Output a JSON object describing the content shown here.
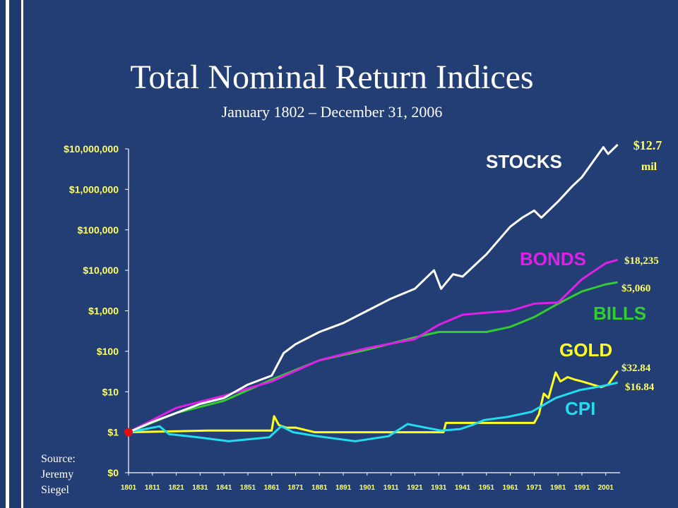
{
  "title": "Total Nominal Return Indices",
  "subtitle": "January 1802 – December 31, 2006",
  "source_lines": [
    "Source:",
    "Jeremy",
    "Siegel"
  ],
  "colors": {
    "background": "#233e74",
    "axis_text": "#ffff66",
    "stocks": "#ffffff",
    "bonds": "#e020e8",
    "bills": "#33cc33",
    "gold": "#ffff22",
    "cpi": "#22ddee",
    "marker": "#e01010"
  },
  "chart_data": {
    "type": "line",
    "x_scale": "linear",
    "y_scale": "log",
    "xlim": [
      1801,
      2007
    ],
    "ylim_log10": [
      -1,
      7
    ],
    "x_ticks": [
      1801,
      1811,
      1821,
      1831,
      1841,
      1851,
      1861,
      1871,
      1881,
      1891,
      1901,
      1911,
      1921,
      1931,
      1941,
      1951,
      1961,
      1971,
      1981,
      1991,
      2001
    ],
    "x_tick_labels": [
      "1801",
      "1811",
      "1821",
      "1831",
      "1841",
      "1851",
      "1861",
      "1871",
      "1881",
      "1891",
      "1901",
      "1911",
      "1921",
      "1931",
      "1941",
      "1951",
      "1961",
      "1971",
      "1981",
      "1991",
      "2001"
    ],
    "y_ticks_log10": [
      -1,
      0,
      1,
      2,
      3,
      4,
      5,
      6,
      7
    ],
    "y_tick_labels": [
      "$0",
      "$1",
      "$10",
      "$100",
      "$1,000",
      "$10,000",
      "$100,000",
      "$1,000,000",
      "$10,000,000"
    ],
    "start_marker": {
      "x": 1801,
      "value": 1
    },
    "series": [
      {
        "name": "STOCKS",
        "end_label": "$12.7 mil",
        "end_label_lines": [
          "$12.7",
          "mil"
        ],
        "x": [
          1801,
          1811,
          1821,
          1831,
          1841,
          1851,
          1861,
          1866,
          1871,
          1881,
          1891,
          1901,
          1911,
          1921,
          1929,
          1932,
          1937,
          1941,
          1951,
          1961,
          1966,
          1971,
          1974,
          1981,
          1987,
          1991,
          2000,
          2002,
          2006
        ],
        "values": [
          1,
          1.8,
          3,
          5,
          7,
          15,
          25,
          90,
          150,
          300,
          500,
          1000,
          2000,
          3500,
          10000,
          3500,
          8000,
          7000,
          25000,
          120000,
          200000,
          300000,
          200000,
          500000,
          1200000,
          2000000,
          11000000,
          7500000,
          12700000
        ]
      },
      {
        "name": "BONDS",
        "end_label": "$18,235",
        "x": [
          1801,
          1821,
          1841,
          1861,
          1881,
          1901,
          1921,
          1931,
          1941,
          1951,
          1961,
          1971,
          1981,
          1991,
          2001,
          2006
        ],
        "values": [
          1,
          4,
          8,
          18,
          60,
          120,
          200,
          450,
          800,
          900,
          1000,
          1500,
          1600,
          6000,
          15000,
          18235
        ]
      },
      {
        "name": "BILLS",
        "end_label": "$5,060",
        "x": [
          1801,
          1821,
          1841,
          1861,
          1881,
          1901,
          1921,
          1931,
          1941,
          1951,
          1961,
          1971,
          1981,
          1991,
          2001,
          2006
        ],
        "values": [
          1,
          3,
          6,
          20,
          60,
          110,
          220,
          300,
          300,
          300,
          400,
          700,
          1500,
          3000,
          4500,
          5060
        ]
      },
      {
        "name": "GOLD",
        "end_label": "$32.84",
        "x": [
          1801,
          1834,
          1861,
          1862,
          1864,
          1867,
          1871,
          1879,
          1933,
          1934,
          1971,
          1973,
          1975,
          1977,
          1980,
          1982,
          1985,
          1988,
          1991,
          1999,
          2002,
          2006
        ],
        "values": [
          1,
          1.1,
          1.1,
          2.5,
          1.5,
          1.3,
          1.3,
          1.0,
          1.0,
          1.7,
          1.7,
          2.8,
          9,
          7,
          30,
          18,
          23,
          20,
          18,
          13,
          15,
          32.84
        ]
      },
      {
        "name": "CPI",
        "end_label": "$16.84",
        "x": [
          1801,
          1814,
          1818,
          1830,
          1843,
          1860,
          1865,
          1870,
          1880,
          1896,
          1910,
          1918,
          1920,
          1932,
          1940,
          1945,
          1950,
          1960,
          1970,
          1980,
          1990,
          2000,
          2006
        ],
        "values": [
          1,
          1.4,
          0.9,
          0.75,
          0.6,
          0.75,
          1.4,
          1.0,
          0.8,
          0.6,
          0.8,
          1.6,
          1.5,
          1.1,
          1.2,
          1.5,
          2.0,
          2.4,
          3.2,
          7.0,
          11.0,
          14.0,
          16.84
        ]
      }
    ]
  }
}
